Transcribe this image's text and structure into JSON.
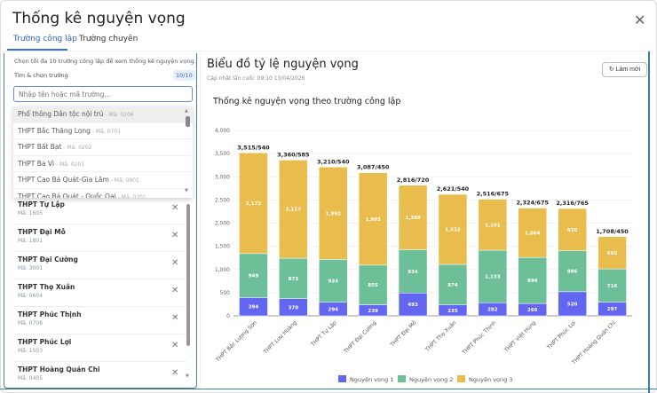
{
  "modal": {
    "title": "Thống kê nguyện vọng",
    "close_icon": "close-icon"
  },
  "tabs": [
    {
      "label": "Trường công lập",
      "active": true
    },
    {
      "label": "Trường chuyên",
      "active": false
    }
  ],
  "left": {
    "hint": "Chọn tối đa 10 trường công lập để xem thống kê nguyện vọng.",
    "search_label": "Tìm & chọn trường",
    "count_badge": "10/10",
    "search_placeholder": "Nhập tên hoặc mã trường...",
    "dropdown": [
      {
        "name": "Phổ thông Dân tộc nội trú",
        "code": " - Mã: 0206"
      },
      {
        "name": "THPT Bắc Thăng Long",
        "code": " - Mã: 0701"
      },
      {
        "name": "THPT Bất Bạt",
        "code": " - Mã: 0202"
      },
      {
        "name": "THPT Ba Vì",
        "code": " - Mã: 0201"
      },
      {
        "name": "THPT Cao Bá Quát-Gia Lâm",
        "code": " - Mã: 0901"
      },
      {
        "name": "THPT Cao Bá Quát - Quốc Oai",
        "code": " - Mã: 0101"
      }
    ],
    "selected": [
      {
        "name": "THPT Tự Lập",
        "code": "Mã: 1605"
      },
      {
        "name": "THPT Đại Mỗ",
        "code": "Mã: 1801"
      },
      {
        "name": "THPT Đại Cường",
        "code": "Mã: 3001"
      },
      {
        "name": "THPT Thọ Xuân",
        "code": "Mã: 0604"
      },
      {
        "name": "THPT Phúc Thịnh",
        "code": "Mã: 0706"
      },
      {
        "name": "THPT Phúc Lợi",
        "code": "Mã: 1503"
      },
      {
        "name": "THPT Hoàng Quán Chi",
        "code": "Mã: 0405"
      }
    ]
  },
  "right": {
    "title": "Biểu đồ tỷ lệ nguyện vọng",
    "updated": "Cập nhật lần cuối: 09:10 13/04/2026",
    "refresh_label": "↻ Làm mới"
  },
  "chart_data": {
    "type": "bar",
    "stacked": true,
    "title": "Thống kê nguyện vọng theo trường công lập",
    "categories": [
      "THPT Bắc Lương Sơn",
      "THPT Lưu Hoàng",
      "THPT Tự Lập",
      "THPT Đại Cường",
      "THPT Đại Mỗ",
      "THPT Thọ Xuân",
      "THPT Phúc Thịnh",
      "THPT Việt Hùng",
      "THPT Phúc Lợi",
      "THPT Hoàng Quán Chi"
    ],
    "series": [
      {
        "name": "Nguyện vọng 1",
        "color": "#6366f1",
        "values": [
          394,
          370,
          294,
          239,
          493,
          235,
          282,
          266,
          520,
          297
        ]
      },
      {
        "name": "Nguyện vọng 2",
        "color": "#6dbf98",
        "values": [
          949,
          873,
          924,
          855,
          934,
          874,
          1133,
          994,
          886,
          716
        ]
      },
      {
        "name": "Nguyện vọng 3",
        "color": "#e8bd4e",
        "values": [
          2172,
          2117,
          1992,
          1993,
          1389,
          1512,
          1101,
          1064,
          910,
          695
        ]
      }
    ],
    "top_labels": [
      "3,515/540",
      "3,360/585",
      "3,210/540",
      "3,087/450",
      "2,816/720",
      "2,621/540",
      "2,516/675",
      "2,324/675",
      "2,316/765",
      "1,708/450"
    ],
    "yticks": [
      "0",
      "500",
      "1,000",
      "1,500",
      "2,000",
      "2,500",
      "3,000",
      "3,500",
      "4,000"
    ],
    "ylim": [
      0,
      4000
    ],
    "grid": true,
    "legend": "bottom"
  }
}
